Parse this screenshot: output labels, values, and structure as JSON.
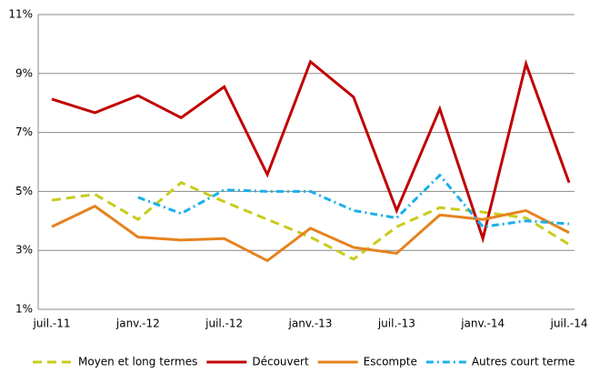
{
  "chart_data": {
    "type": "line",
    "categories": [
      "juil.-11",
      null,
      "janv.-12",
      null,
      "juil.-12",
      null,
      "janv.-13",
      null,
      "juil.-13",
      null,
      "janv.-14",
      null,
      "juil.-14"
    ],
    "series": [
      {
        "name": "Moyen et long termes",
        "color": "#c8cc1c",
        "dash": "dash",
        "values": [
          4.7,
          4.9,
          4.05,
          5.3,
          4.65,
          4.05,
          3.45,
          2.7,
          3.8,
          4.45,
          4.3,
          4.1,
          3.2
        ]
      },
      {
        "name": "Découvert",
        "color": "#c00000",
        "dash": "solid",
        "values": [
          8.13,
          7.67,
          8.25,
          7.5,
          8.55,
          5.57,
          9.4,
          8.2,
          4.35,
          7.8,
          3.4,
          9.33,
          5.3
        ]
      },
      {
        "name": "Escompte",
        "color": "#e6821e",
        "dash": "solid",
        "values": [
          3.8,
          4.5,
          3.45,
          3.35,
          3.4,
          2.65,
          3.75,
          3.1,
          2.9,
          4.2,
          4.05,
          4.35,
          3.6
        ]
      },
      {
        "name": "Autres court terme",
        "color": "#1ab0e8",
        "dash": "dash-dot",
        "values": [
          null,
          null,
          4.8,
          4.25,
          5.05,
          5.0,
          5.0,
          4.35,
          4.1,
          5.55,
          3.8,
          4.0,
          3.9
        ]
      }
    ],
    "ylim": [
      1,
      11
    ],
    "yticks": [
      {
        "value": 1,
        "label": "1%"
      },
      {
        "value": 3,
        "label": "3%"
      },
      {
        "value": 5,
        "label": "5%"
      },
      {
        "value": 7,
        "label": "7%"
      },
      {
        "value": 9,
        "label": "9%"
      },
      {
        "value": 11,
        "label": "11%"
      }
    ],
    "grid": true,
    "legend": "bottom"
  }
}
